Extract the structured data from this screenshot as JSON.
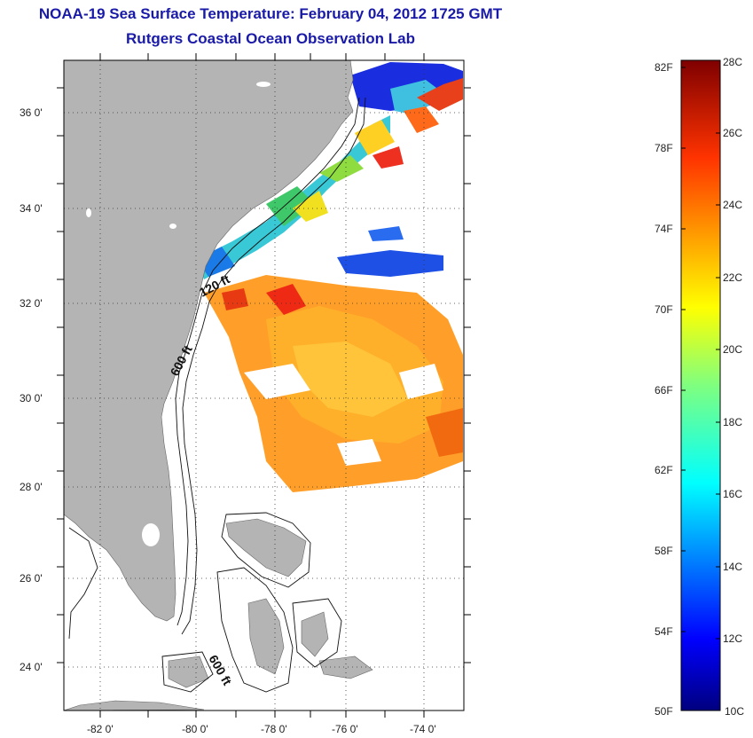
{
  "title": "NOAA-19 Sea Surface Temperature:  February 04, 2012 1725 GMT",
  "subtitle": "Rutgers Coastal Ocean Observation Lab",
  "map": {
    "lon_labels": [
      "-82 0'",
      "-80 0'",
      "-78 0'",
      "-76 0'",
      "-74 0'"
    ],
    "lat_labels": [
      "36 0'",
      "34 0'",
      "32 0'",
      "30 0'",
      "28 0'",
      "26 0'",
      "24 0'"
    ],
    "lon_values": [
      -82,
      -80,
      -78,
      -76,
      -74
    ],
    "lat_values": [
      36,
      34,
      32,
      30,
      28,
      26,
      24
    ],
    "lon_range": [
      -83,
      -73
    ],
    "lat_range": [
      23,
      37
    ],
    "depth_labels": [
      "120 ft",
      "600 ft",
      "600 ft"
    ],
    "land_color": "#b4b4b4",
    "grid": "dotted"
  },
  "colorbar": {
    "fahrenheit_labels": [
      "82F",
      "78F",
      "74F",
      "70F",
      "66F",
      "62F",
      "58F",
      "54F",
      "50F"
    ],
    "fahrenheit_values": [
      82,
      78,
      74,
      70,
      66,
      62,
      58,
      54,
      50
    ],
    "celsius_labels": [
      "28C",
      "26C",
      "24C",
      "22C",
      "20C",
      "18C",
      "16C",
      "14C",
      "12C",
      "10C"
    ],
    "celsius_values": [
      28,
      26,
      24,
      22,
      20,
      18,
      16,
      14,
      12,
      10
    ],
    "range_c": [
      10,
      28
    ]
  }
}
